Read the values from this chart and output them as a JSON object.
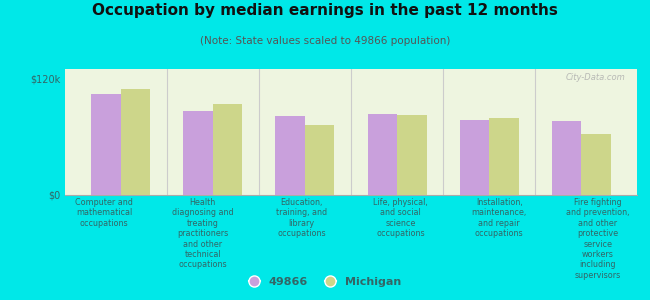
{
  "title": "Occupation by median earnings in the past 12 months",
  "subtitle": "(Note: State values scaled to 49866 population)",
  "background_color": "#00e8e8",
  "plot_bg_color": "#eef5e0",
  "bar_color_1": "#c9a0dc",
  "bar_color_2": "#cdd68a",
  "legend_labels": [
    "49866",
    "Michigan"
  ],
  "categories": [
    "Computer and\nmathematical\noccupations",
    "Health\ndiagnosing and\ntreating\npractitioners\nand other\ntechnical\noccupations",
    "Education,\ntraining, and\nlibrary\noccupations",
    "Life, physical,\nand social\nscience\noccupations",
    "Installation,\nmaintenance,\nand repair\noccupations",
    "Fire fighting\nand prevention,\nand other\nprotective\nservice\nworkers\nincluding\nsupervisors"
  ],
  "values_1": [
    104000,
    87000,
    82000,
    84000,
    77000,
    76000
  ],
  "values_2": [
    109000,
    94000,
    72000,
    83000,
    79000,
    63000
  ],
  "ylim": [
    0,
    130000
  ],
  "yticks": [
    0,
    120000
  ],
  "ytick_labels": [
    "$0",
    "$120k"
  ],
  "watermark": "City-Data.com",
  "title_fontsize": 11,
  "subtitle_fontsize": 7.5,
  "tick_label_fontsize": 7,
  "cat_fontsize": 5.8,
  "legend_fontsize": 8
}
